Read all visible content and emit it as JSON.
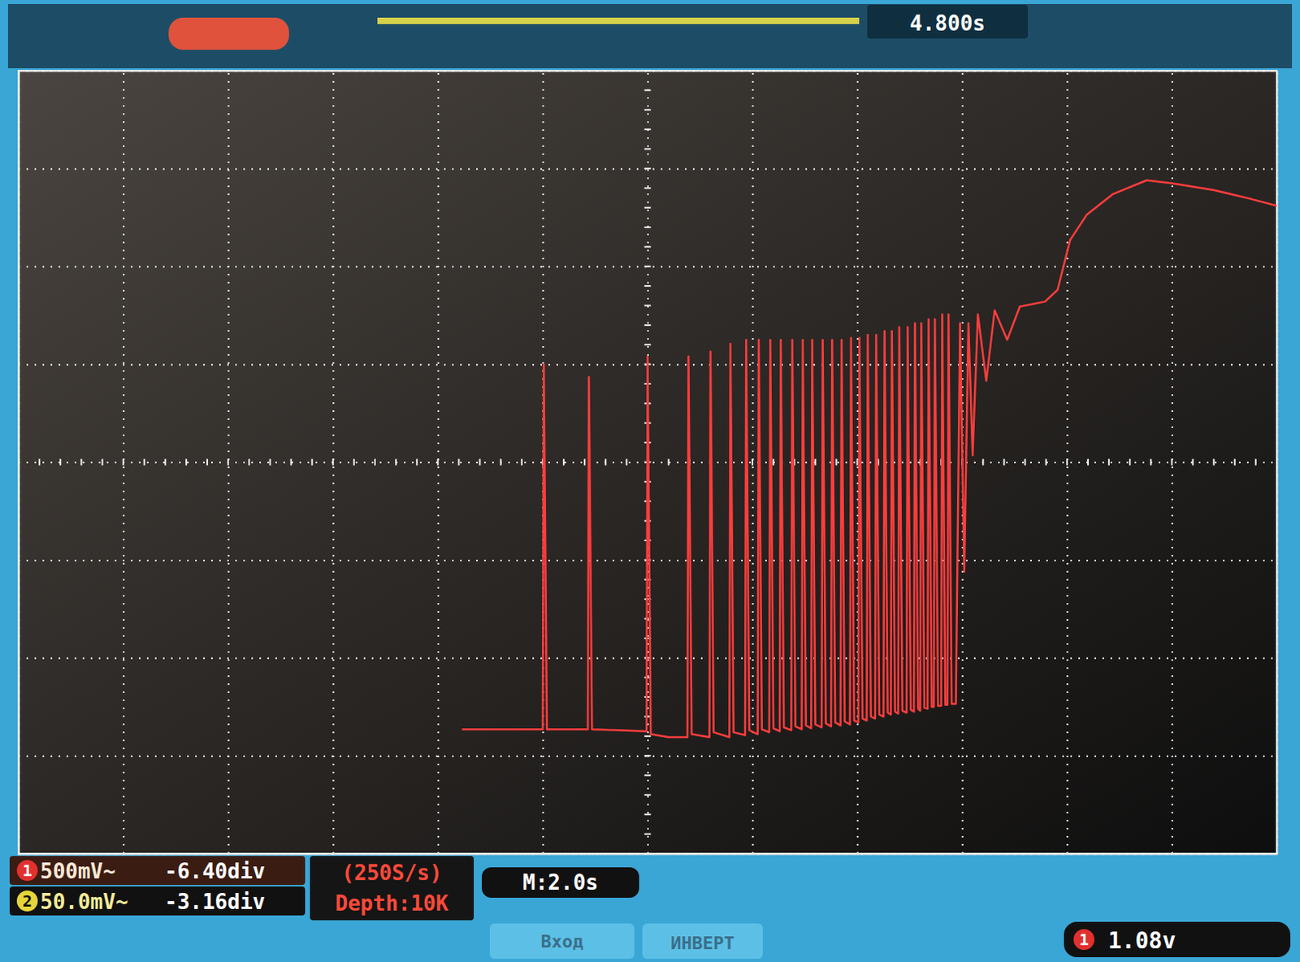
{
  "chart_data": {
    "type": "line",
    "annotations": [
      "4.800s",
      "1",
      "500mV~",
      "-6.40div",
      "2",
      "50.0mV~",
      "-3.16div",
      "(250S/s)",
      "Depth:10K",
      "M:2.0s",
      "Вход",
      "ИНВЕРТ",
      "1",
      "1.08v"
    ],
    "x": [
      -1.77,
      -1.0,
      -0.99,
      -0.96,
      -0.57,
      -0.56,
      -0.53,
      -0.01,
      0.0,
      0.03,
      0.2,
      0.38,
      0.39,
      0.42,
      0.59,
      0.6,
      0.63,
      0.78,
      0.79,
      0.82,
      0.93,
      0.94,
      0.97,
      1.05,
      1.06,
      1.09,
      1.16,
      1.17,
      1.2,
      1.26,
      1.27,
      1.3,
      1.37,
      1.38,
      1.41,
      1.47,
      1.48,
      1.51,
      1.56,
      1.57,
      1.6,
      1.66,
      1.67,
      1.7,
      1.75,
      1.76,
      1.79,
      1.84,
      1.85,
      1.88,
      1.93,
      1.94,
      1.97,
      2.01,
      2.02,
      2.05,
      2.09,
      2.1,
      2.13,
      2.17,
      2.18,
      2.21,
      2.25,
      2.26,
      2.29,
      2.32,
      2.33,
      2.36,
      2.39,
      2.4,
      2.43,
      2.47,
      2.48,
      2.51,
      2.54,
      2.55,
      2.58,
      2.6,
      2.61,
      2.64,
      2.67,
      2.68,
      2.71,
      2.73,
      2.74,
      2.77,
      2.8,
      2.81,
      2.84,
      2.86,
      2.87,
      2.9,
      2.94,
      2.98,
      3.02,
      3.06,
      3.1,
      3.15,
      3.23,
      3.31,
      3.43,
      3.55,
      3.79,
      3.91,
      4.03,
      4.19,
      4.44,
      4.76,
      5.0,
      5.4,
      5.75,
      6.0
    ],
    "values": [
      -2.73,
      -2.73,
      1.0,
      -2.73,
      -2.73,
      0.87,
      -2.73,
      -2.75,
      1.08,
      -2.78,
      -2.81,
      -2.81,
      1.08,
      -2.78,
      -2.81,
      1.13,
      -2.76,
      -2.81,
      1.21,
      -2.76,
      -2.79,
      1.25,
      -2.74,
      -2.78,
      1.25,
      -2.73,
      -2.76,
      1.25,
      -2.72,
      -2.75,
      1.25,
      -2.71,
      -2.74,
      1.25,
      -2.7,
      -2.73,
      1.25,
      -2.69,
      -2.72,
      1.25,
      -2.68,
      -2.71,
      1.25,
      -2.67,
      -2.7,
      1.25,
      -2.66,
      -2.69,
      1.25,
      -2.65,
      -2.68,
      1.27,
      -2.64,
      -2.66,
      1.27,
      -2.62,
      -2.64,
      1.3,
      -2.6,
      -2.62,
      1.3,
      -2.58,
      -2.6,
      1.34,
      -2.56,
      -2.58,
      1.34,
      -2.55,
      -2.57,
      1.38,
      -2.54,
      -2.56,
      1.38,
      -2.53,
      -2.55,
      1.42,
      -2.52,
      -2.54,
      1.42,
      -2.51,
      -2.52,
      1.46,
      -2.5,
      -2.5,
      1.46,
      -2.49,
      -2.49,
      1.51,
      -2.48,
      -2.48,
      1.51,
      -2.47,
      -2.47,
      1.42,
      -1.12,
      1.42,
      0.07,
      1.51,
      0.83,
      1.55,
      1.25,
      1.59,
      1.64,
      1.76,
      2.27,
      2.53,
      2.74,
      2.88,
      2.85,
      2.78,
      2.69,
      2.62
    ],
    "color": "#ff3d3d",
    "xlim": [
      -6,
      6
    ],
    "ylim": [
      -4,
      4
    ],
    "xticks": [
      -6,
      -5,
      -4,
      -3,
      -2,
      -1,
      0,
      1,
      2,
      3,
      4,
      5,
      6
    ],
    "yticks": [
      -4,
      -3,
      -2,
      -1,
      0,
      1,
      2,
      3,
      4
    ],
    "grid": true,
    "tick_labels": false
  }
}
